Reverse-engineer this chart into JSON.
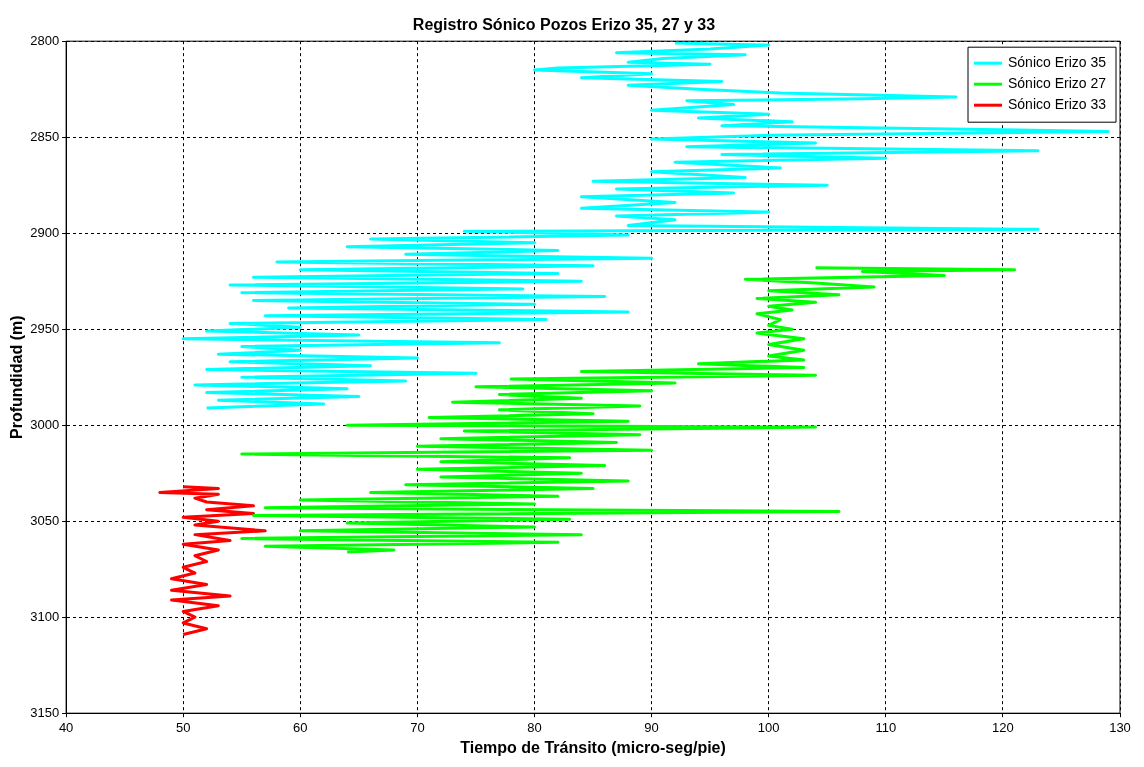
{
  "chart_data": {
    "type": "line",
    "title": "Registro Sónico Pozos Erizo 35, 27 y 33",
    "xlabel": "Tiempo de Tránsito (micro-seg/pie)",
    "ylabel": "Profundidad (m)",
    "xlim": [
      40,
      130
    ],
    "xticks": [
      40,
      50,
      60,
      70,
      80,
      90,
      100,
      110,
      120,
      130
    ],
    "ylim": [
      3150,
      2800
    ],
    "yticks": [
      2800,
      2850,
      2900,
      2950,
      3000,
      3050,
      3100,
      3150
    ],
    "grid": true,
    "legend": "top right",
    "marker": "none",
    "line_style": "solid",
    "series": [
      {
        "name": "Sónico Erizo 35",
        "color": "#00ffff",
        "x": [
          92,
          100,
          95,
          87,
          98,
          91,
          88,
          95,
          82,
          80,
          90,
          84,
          96,
          88,
          94,
          101,
          116,
          108,
          93,
          97,
          90,
          100,
          94,
          102,
          96,
          129,
          100,
          90,
          104,
          93,
          123,
          96,
          110,
          92,
          101,
          90,
          98,
          85,
          105,
          87,
          97,
          84,
          92,
          84,
          100,
          87,
          92,
          88,
          123,
          74,
          88,
          66,
          80,
          64,
          82,
          69,
          90,
          58,
          85,
          60,
          82,
          56,
          84,
          54,
          79,
          55,
          86,
          56,
          80,
          59,
          88,
          57,
          81,
          54,
          60,
          52,
          65,
          50,
          77,
          55,
          60,
          53,
          70,
          54,
          66,
          52,
          75,
          55,
          69,
          51,
          64,
          52,
          65,
          53,
          62,
          52
        ],
        "values": [
          2801,
          2802,
          2804,
          2806,
          2807,
          2809,
          2811,
          2812,
          2814,
          2815,
          2817,
          2819,
          2821,
          2823,
          2825,
          2827,
          2829,
          2830,
          2831,
          2833,
          2836,
          2838,
          2840,
          2842,
          2844,
          2847,
          2849,
          2851,
          2853,
          2855,
          2857,
          2859,
          2861,
          2863,
          2866,
          2868,
          2871,
          2873,
          2875,
          2877,
          2879,
          2881,
          2884,
          2887,
          2889,
          2891,
          2893,
          2896,
          2898,
          2899,
          2901,
          2903,
          2905,
          2907,
          2909,
          2911,
          2913,
          2915,
          2917,
          2919,
          2921,
          2923,
          2925,
          2927,
          2929,
          2931,
          2933,
          2935,
          2937,
          2939,
          2941,
          2943,
          2945,
          2947,
          2949,
          2951,
          2953,
          2955,
          2957,
          2959,
          2961,
          2963,
          2965,
          2967,
          2969,
          2971,
          2973,
          2975,
          2977,
          2979,
          2981,
          2983,
          2985,
          2987,
          2989,
          2991
        ]
      },
      {
        "name": "Sónico Erizo 27",
        "color": "#00ff00",
        "x": [
          104,
          121,
          108,
          115,
          98,
          104,
          109,
          100,
          106,
          99,
          104,
          100,
          102,
          99,
          101,
          100,
          102,
          99,
          103,
          100,
          103,
          100,
          103,
          94,
          103,
          84,
          104,
          78,
          92,
          75,
          90,
          77,
          84,
          73,
          89,
          77,
          85,
          71,
          88,
          64,
          104,
          74,
          89,
          72,
          87,
          70,
          90,
          55,
          83,
          72,
          86,
          70,
          84,
          72,
          88,
          69,
          85,
          66,
          82,
          60,
          80,
          57,
          106,
          56,
          83,
          64,
          80,
          60,
          84,
          55,
          82,
          57,
          68,
          64
        ],
        "values": [
          2918,
          2919,
          2920,
          2922,
          2924,
          2926,
          2928,
          2930,
          2932,
          2934,
          2936,
          2938,
          2940,
          2942,
          2945,
          2948,
          2950,
          2952,
          2955,
          2958,
          2961,
          2964,
          2966,
          2968,
          2970,
          2972,
          2974,
          2976,
          2978,
          2980,
          2982,
          2984,
          2986,
          2988,
          2990,
          2992,
          2994,
          2996,
          2998,
          3000,
          3001,
          3003,
          3005,
          3007,
          3009,
          3011,
          3013,
          3015,
          3017,
          3019,
          3021,
          3023,
          3025,
          3027,
          3029,
          3031,
          3033,
          3035,
          3037,
          3039,
          3041,
          3043,
          3045,
          3047,
          3049,
          3051,
          3053,
          3055,
          3057,
          3059,
          3061,
          3063,
          3065,
          3066
        ]
      },
      {
        "name": "Sónico Erizo 33",
        "color": "#ff0000",
        "x": [
          50,
          53,
          48,
          53,
          51,
          52,
          56,
          52,
          56,
          50,
          53,
          51,
          57,
          51,
          54,
          50,
          53,
          51,
          52,
          50,
          51,
          49,
          52,
          49,
          54,
          49,
          53,
          50,
          51,
          50,
          52,
          50
        ],
        "values": [
          3032,
          3033,
          3035,
          3036,
          3038,
          3040,
          3042,
          3044,
          3046,
          3048,
          3050,
          3052,
          3055,
          3057,
          3060,
          3062,
          3065,
          3068,
          3071,
          3074,
          3077,
          3080,
          3083,
          3086,
          3089,
          3091,
          3094,
          3097,
          3100,
          3103,
          3106,
          3109
        ]
      }
    ]
  }
}
